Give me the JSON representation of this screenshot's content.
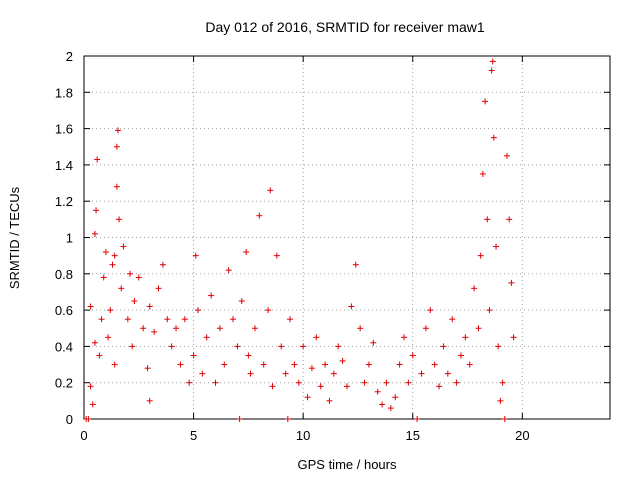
{
  "chart_data": {
    "type": "scatter",
    "title": "Day 012 of 2016, SRMTID for receiver maw1",
    "xlabel": "GPS time / hours",
    "ylabel": "SRMTID / TECUs",
    "xlim": [
      0,
      24
    ],
    "ylim": [
      0,
      2
    ],
    "xticks": [
      0,
      5,
      10,
      15,
      20
    ],
    "yticks": [
      0,
      0.2,
      0.4,
      0.6,
      0.8,
      1,
      1.2,
      1.4,
      1.6,
      1.8,
      2
    ],
    "xtick_labels": [
      "0",
      "5",
      "10",
      "15",
      "20"
    ],
    "ytick_labels": [
      "0",
      "0.2",
      "0.4",
      "0.6",
      "0.8",
      "1",
      "1.2",
      "1.4",
      "1.6",
      "1.8",
      "2"
    ],
    "grid": true,
    "marker": "plus",
    "color": "#e00000",
    "series": [
      {
        "name": "SRMTID",
        "points": [
          [
            0.1,
            0.0
          ],
          [
            0.2,
            0.0
          ],
          [
            0.3,
            0.18
          ],
          [
            0.3,
            0.62
          ],
          [
            0.4,
            0.08
          ],
          [
            0.5,
            0.42
          ],
          [
            0.5,
            1.02
          ],
          [
            0.55,
            1.15
          ],
          [
            0.6,
            1.43
          ],
          [
            0.7,
            0.35
          ],
          [
            0.8,
            0.55
          ],
          [
            0.9,
            0.78
          ],
          [
            1.0,
            0.92
          ],
          [
            1.1,
            0.45
          ],
          [
            1.2,
            0.6
          ],
          [
            1.3,
            0.85
          ],
          [
            1.4,
            0.3
          ],
          [
            1.4,
            0.9
          ],
          [
            1.5,
            1.28
          ],
          [
            1.5,
            1.5
          ],
          [
            1.55,
            1.59
          ],
          [
            1.6,
            1.1
          ],
          [
            1.7,
            0.72
          ],
          [
            1.8,
            0.95
          ],
          [
            2.0,
            0.55
          ],
          [
            2.1,
            0.8
          ],
          [
            2.2,
            0.4
          ],
          [
            2.3,
            0.65
          ],
          [
            2.5,
            0.78
          ],
          [
            2.7,
            0.5
          ],
          [
            2.9,
            0.28
          ],
          [
            3.0,
            0.1
          ],
          [
            3.0,
            0.62
          ],
          [
            3.2,
            0.48
          ],
          [
            3.4,
            0.72
          ],
          [
            3.6,
            0.85
          ],
          [
            3.8,
            0.55
          ],
          [
            4.0,
            0.4
          ],
          [
            4.2,
            0.5
          ],
          [
            4.4,
            0.3
          ],
          [
            4.6,
            0.55
          ],
          [
            4.8,
            0.2
          ],
          [
            5.0,
            0.35
          ],
          [
            5.1,
            0.9
          ],
          [
            5.2,
            0.6
          ],
          [
            5.4,
            0.25
          ],
          [
            5.6,
            0.45
          ],
          [
            5.8,
            0.68
          ],
          [
            6.0,
            0.2
          ],
          [
            6.2,
            0.5
          ],
          [
            6.4,
            0.3
          ],
          [
            6.6,
            0.82
          ],
          [
            6.8,
            0.55
          ],
          [
            7.0,
            0.4
          ],
          [
            7.1,
            0.0
          ],
          [
            7.2,
            0.65
          ],
          [
            7.4,
            0.92
          ],
          [
            7.5,
            0.35
          ],
          [
            7.6,
            0.25
          ],
          [
            7.8,
            0.5
          ],
          [
            8.0,
            1.12
          ],
          [
            8.2,
            0.3
          ],
          [
            8.4,
            0.6
          ],
          [
            8.5,
            1.26
          ],
          [
            8.6,
            0.18
          ],
          [
            8.8,
            0.9
          ],
          [
            9.0,
            0.4
          ],
          [
            9.2,
            0.25
          ],
          [
            9.3,
            0.0
          ],
          [
            9.4,
            0.55
          ],
          [
            9.6,
            0.3
          ],
          [
            9.8,
            0.2
          ],
          [
            10.0,
            0.4
          ],
          [
            10.2,
            0.12
          ],
          [
            10.4,
            0.28
          ],
          [
            10.6,
            0.45
          ],
          [
            10.8,
            0.18
          ],
          [
            11.0,
            0.3
          ],
          [
            11.2,
            0.1
          ],
          [
            11.4,
            0.25
          ],
          [
            11.6,
            0.4
          ],
          [
            11.8,
            0.32
          ],
          [
            12.0,
            0.18
          ],
          [
            12.2,
            0.62
          ],
          [
            12.4,
            0.85
          ],
          [
            12.6,
            0.5
          ],
          [
            12.8,
            0.2
          ],
          [
            13.0,
            0.3
          ],
          [
            13.2,
            0.42
          ],
          [
            13.4,
            0.15
          ],
          [
            13.6,
            0.08
          ],
          [
            13.8,
            0.2
          ],
          [
            14.0,
            0.06
          ],
          [
            14.2,
            0.12
          ],
          [
            14.4,
            0.3
          ],
          [
            14.6,
            0.45
          ],
          [
            14.8,
            0.2
          ],
          [
            15.0,
            0.35
          ],
          [
            15.2,
            0.0
          ],
          [
            15.4,
            0.25
          ],
          [
            15.6,
            0.5
          ],
          [
            15.8,
            0.6
          ],
          [
            16.0,
            0.3
          ],
          [
            16.2,
            0.18
          ],
          [
            16.4,
            0.4
          ],
          [
            16.6,
            0.25
          ],
          [
            16.8,
            0.55
          ],
          [
            17.0,
            0.2
          ],
          [
            17.2,
            0.35
          ],
          [
            17.4,
            0.45
          ],
          [
            17.6,
            0.3
          ],
          [
            17.8,
            0.72
          ],
          [
            18.0,
            0.5
          ],
          [
            18.1,
            0.9
          ],
          [
            18.2,
            1.35
          ],
          [
            18.3,
            1.75
          ],
          [
            18.4,
            1.1
          ],
          [
            18.5,
            0.6
          ],
          [
            18.6,
            1.92
          ],
          [
            18.65,
            1.97
          ],
          [
            18.7,
            1.55
          ],
          [
            18.8,
            0.95
          ],
          [
            18.9,
            0.4
          ],
          [
            19.0,
            0.1
          ],
          [
            19.1,
            0.2
          ],
          [
            19.2,
            0.0
          ],
          [
            19.3,
            1.45
          ],
          [
            19.4,
            1.1
          ],
          [
            19.5,
            0.75
          ],
          [
            19.6,
            0.45
          ]
        ]
      }
    ]
  }
}
